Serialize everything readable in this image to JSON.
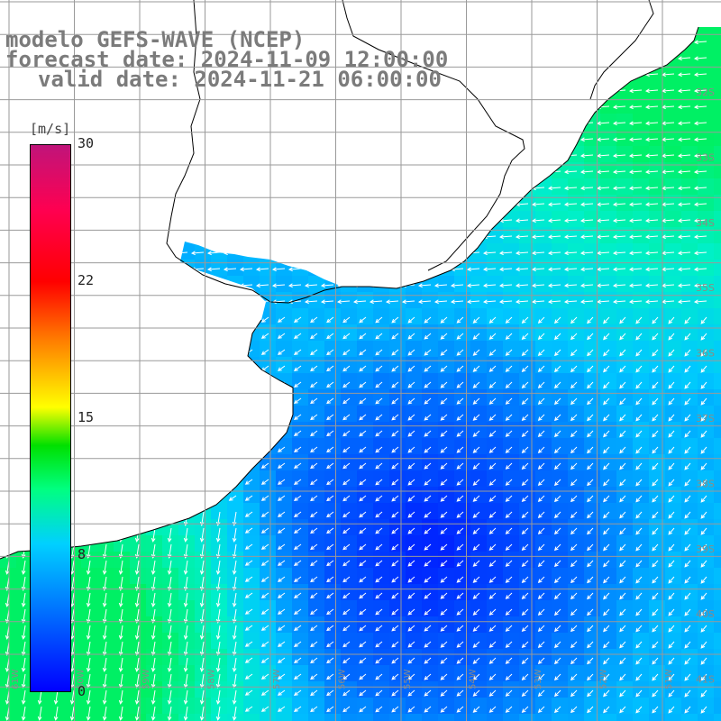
{
  "title": {
    "line1": "modelo GEFS-WAVE (NCEP)",
    "line2": "forecast date: 2024-11-09 12:00:00",
    "line3": "valid date: 2024-11-21 06:00:00"
  },
  "colorbar": {
    "unit": "[m/s]",
    "ticks": [
      "30",
      "22",
      "15",
      "8",
      "0"
    ],
    "tick_values": [
      30,
      22,
      15,
      8,
      0
    ],
    "range": [
      0,
      30
    ]
  },
  "lat_labels": [
    "32S",
    "33S",
    "34S",
    "35S",
    "36S",
    "37S",
    "38S",
    "39S",
    "40S",
    "41S"
  ],
  "lon_labels": [
    "61W",
    "60W",
    "59W",
    "58W",
    "57W",
    "56W",
    "55W",
    "54W",
    "53W",
    "52W",
    "51W"
  ],
  "colors": {
    "land": "#ffffff",
    "coast": "#000000",
    "grid": "#9a9a9a",
    "arrow": "#ffffff",
    "title": "#7b7b7b"
  }
}
